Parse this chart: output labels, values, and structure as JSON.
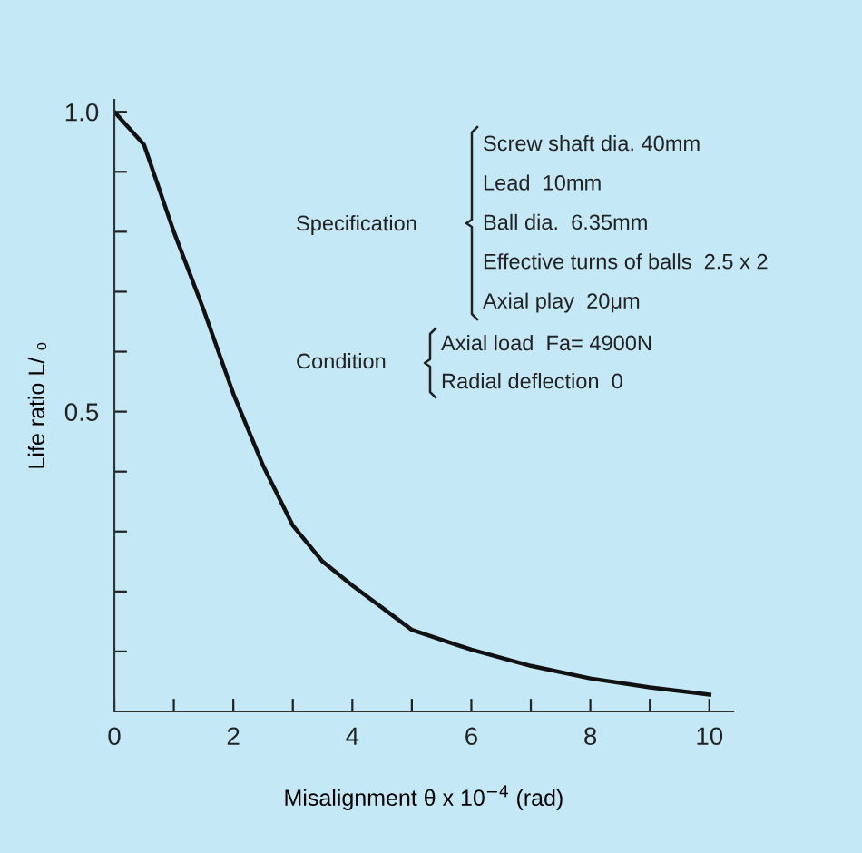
{
  "chart_data": {
    "type": "line",
    "xlabel": "Misalignment θ x 10$^{−4}$ (rad)",
    "ylabel": "Life ratio L/ ₀",
    "x": [
      0,
      0.5,
      1,
      1.5,
      2,
      2.5,
      3,
      3.5,
      4,
      5,
      6,
      7,
      8,
      9,
      10
    ],
    "series": [
      {
        "color": "#111111",
        "values": [
          1.0,
          0.945,
          0.8,
          0.67,
          0.53,
          0.41,
          0.31,
          0.25,
          0.21,
          0.136,
          0.103,
          0.076,
          0.055,
          0.04,
          0.028
        ]
      }
    ],
    "xlim": [
      0,
      10.4
    ],
    "ylim": [
      0,
      1.02
    ],
    "xticks": [
      0,
      {
        "value": 1,
        "label": null
      },
      2,
      {
        "value": 3,
        "label": null
      },
      4,
      {
        "value": 5,
        "label": null
      },
      6,
      {
        "value": 7,
        "label": null
      },
      8,
      {
        "value": 9,
        "label": null
      },
      10
    ],
    "yticks": [
      {
        "value": 0.1,
        "label": null
      },
      {
        "value": 0.2,
        "label": null
      },
      {
        "value": 0.3,
        "label": null
      },
      {
        "value": 0.4,
        "label": null
      },
      0.5,
      {
        "value": 0.6,
        "label": null
      },
      {
        "value": 0.7,
        "label": null
      },
      {
        "value": 0.8,
        "label": null
      },
      {
        "value": 0.9,
        "label": null
      },
      {
        "value": 1.0,
        "label": "1.0"
      }
    ],
    "grid": false,
    "marker": "none",
    "line_style": "solid",
    "annotations": [
      "Specification",
      "Screw shaft dia. 40mm",
      "Lead  10mm",
      "Ball dia.  6.35mm",
      "Effective turns of balls  2.5 x 2",
      "Axial play  20μm",
      "Condition",
      "Axial load  Fa= 4900N",
      "Radial deflection  0"
    ]
  }
}
